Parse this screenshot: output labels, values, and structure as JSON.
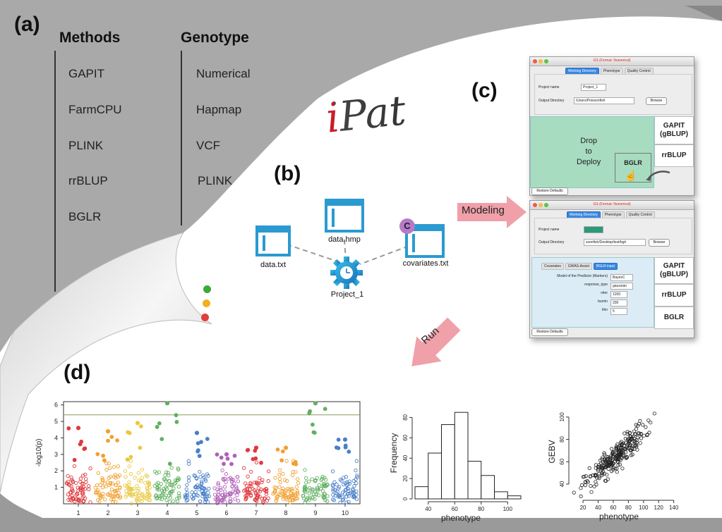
{
  "panels": {
    "a": "(a)",
    "b": "(b)",
    "c": "(c)",
    "d": "(d)"
  },
  "logo": "iPat",
  "methods": {
    "heading": "Methods",
    "items": [
      "GAPIT",
      "FarmCPU",
      "PLINK",
      "rrBLUP",
      "BGLR"
    ]
  },
  "genotype": {
    "heading": "Genotype",
    "items": [
      "Numerical",
      "Hapmap",
      "VCF",
      "PLINK"
    ]
  },
  "flow": {
    "files": [
      "data.txt",
      "data.hmp",
      "covariates.txt"
    ],
    "project": "Project_1",
    "cov_badge": "C",
    "modeling": "Modeling",
    "run": "Run"
  },
  "window1": {
    "title": "GS (Format: Numerical)",
    "tabs": [
      "Working Directory",
      "Phenotype",
      "Quality Control"
    ],
    "project_name_label": "Project name",
    "project_name_value": "Project_1",
    "output_dir_label": "Output Directory",
    "output_dir_value": "/Users/Poissonfish",
    "browse": "Browse",
    "drop_text": [
      "Drop",
      "to",
      "Deploy"
    ],
    "drag_item": "BGLR",
    "methods": [
      "GAPIT (gBLUP)",
      "rrBLUP"
    ],
    "restore": "Restore Defaults"
  },
  "window2": {
    "title": "GS (Format: Numerical)",
    "tabs": [
      "Working Directory",
      "Phenotype",
      "Quality Control"
    ],
    "project_name_label": "Project name",
    "project_name_value": "Project_1",
    "output_dir_label": "Output Directory",
    "output_dir_value": "ssonfish/Desktop/test/bglr",
    "browse": "Browse",
    "subtabs": [
      "Covariates",
      "GWAS-Assist",
      "BGLR input"
    ],
    "params": [
      {
        "label": "Model of the Predictor (Markers)",
        "value": "BayesC"
      },
      {
        "label": "response_type",
        "value": "gaussian"
      },
      {
        "label": "niter",
        "value": "1200"
      },
      {
        "label": "burnin",
        "value": "200"
      },
      {
        "label": "thin",
        "value": "5"
      }
    ],
    "methods": [
      "GAPIT (gBLUP)",
      "rrBLUP",
      "BGLR"
    ],
    "restore": "Restore Defaults"
  },
  "chart_data": [
    {
      "type": "scatter",
      "title": "",
      "xlabel": "",
      "ylabel": "-log10(p)",
      "chromosomes": [
        "1",
        "2",
        "3",
        "4",
        "5",
        "6",
        "7",
        "8",
        "9",
        "10"
      ],
      "colors": [
        "#e0393e",
        "#f0a030",
        "#e8c840",
        "#60b060",
        "#4a7fc8",
        "#b060b8",
        "#e0393e",
        "#f0a030",
        "#60b060",
        "#4a7fc8"
      ],
      "ylim": [
        0,
        6.2
      ],
      "yticks": [
        1,
        2,
        3,
        4,
        5,
        6
      ],
      "threshold": 5.4,
      "peaks": [
        4.6,
        4.4,
        4.9,
        6.1,
        4.3,
        3.0,
        3.4,
        3.4,
        6.1,
        3.9
      ]
    },
    {
      "type": "bar",
      "title": "",
      "xlabel": "phenotype",
      "ylabel": "Frequency",
      "bin_edges": [
        30,
        40,
        50,
        60,
        70,
        80,
        90,
        100,
        110
      ],
      "values": [
        12,
        45,
        73,
        85,
        37,
        23,
        7,
        3
      ],
      "xticks": [
        40,
        60,
        80,
        100
      ],
      "yticks": [
        0,
        20,
        40,
        60,
        80
      ],
      "ylim": [
        0,
        90
      ]
    },
    {
      "type": "scatter",
      "title": "",
      "xlabel": "phenotype",
      "ylabel": "GEBV",
      "xticks": [
        20,
        40,
        60,
        80,
        100,
        120,
        140
      ],
      "yticks": [
        40,
        60,
        80,
        100
      ],
      "xlim": [
        5,
        145
      ],
      "ylim": [
        28,
        110
      ],
      "fit": {
        "slope": 0.62,
        "intercept": 25,
        "spread": 6,
        "x_mean": 62,
        "x_sd": 20
      }
    }
  ]
}
